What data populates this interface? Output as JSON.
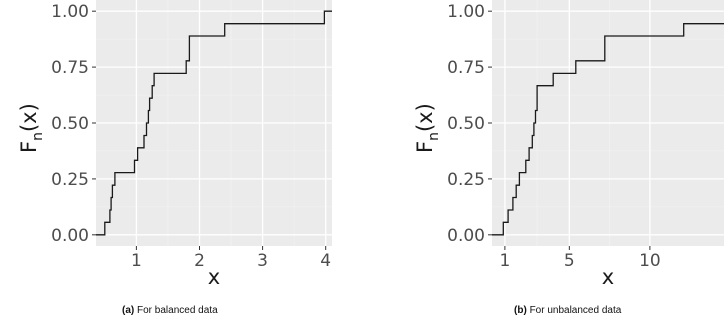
{
  "colors": {
    "panel": "#ebebeb",
    "grid_major": "#ffffff",
    "grid_minor": "#f2f2f2",
    "step": "#1a1a1a",
    "tick_text": "#4d4d4d"
  },
  "chart_data": [
    {
      "type": "line",
      "step": "post",
      "caption_tag": "(a)",
      "caption_text": "For balanced data",
      "xlabel": "x",
      "ylabel_base": "F",
      "ylabel_sub": "n",
      "ylabel_arg": "(x)",
      "xlim": [
        0.36,
        4.1
      ],
      "ylim": [
        -0.05,
        1.05
      ],
      "xticks": [
        1,
        2,
        3,
        4
      ],
      "xtick_labels": [
        "1",
        "2",
        "3",
        "4"
      ],
      "yticks": [
        0,
        0.25,
        0.5,
        0.75,
        1
      ],
      "ytick_labels": [
        "0.00",
        "0.25",
        "0.50",
        "0.75",
        "1.00"
      ],
      "grid": true,
      "x": [
        0.36,
        0.5,
        0.58,
        0.6,
        0.62,
        0.66,
        0.7,
        0.97,
        1.02,
        1.12,
        1.16,
        1.19,
        1.21,
        1.25,
        1.28,
        1.79,
        1.84,
        2.4,
        3.98,
        4.1
      ],
      "y": [
        0,
        0.056,
        0.111,
        0.167,
        0.222,
        0.278,
        0.278,
        0.333,
        0.389,
        0.444,
        0.5,
        0.556,
        0.611,
        0.667,
        0.722,
        0.778,
        0.889,
        0.944,
        1.0,
        1.0
      ]
    },
    {
      "type": "line",
      "step": "post",
      "caption_tag": "(b)",
      "caption_text": "For unbalanced data",
      "xlabel": "x",
      "ylabel_base": "F",
      "ylabel_sub": "n",
      "ylabel_arg": "(x)",
      "xlim": [
        0.2,
        14.6
      ],
      "ylim": [
        -0.05,
        1.05
      ],
      "xticks": [
        1,
        5,
        10
      ],
      "xtick_labels": [
        "1",
        "5",
        "10"
      ],
      "yticks": [
        0,
        0.25,
        0.5,
        0.75,
        1
      ],
      "ytick_labels": [
        "0.00",
        "0.25",
        "0.50",
        "0.75",
        "1.00"
      ],
      "grid": true,
      "x": [
        0.2,
        0.9,
        1.2,
        1.5,
        1.7,
        1.9,
        2.3,
        2.5,
        2.7,
        2.8,
        2.9,
        3.0,
        4.0,
        5.4,
        7.2,
        12.1,
        14.6
      ],
      "y": [
        0,
        0.056,
        0.111,
        0.167,
        0.222,
        0.278,
        0.333,
        0.389,
        0.444,
        0.5,
        0.556,
        0.667,
        0.722,
        0.778,
        0.889,
        0.944,
        0.944
      ]
    }
  ]
}
